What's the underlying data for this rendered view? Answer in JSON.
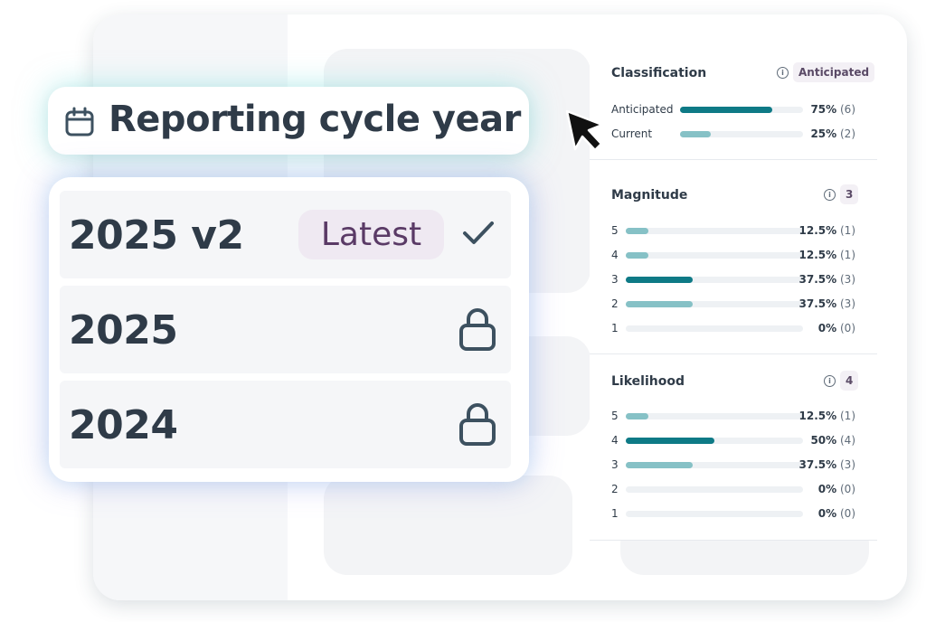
{
  "title_pill": {
    "icon": "calendar-icon",
    "title": "Reporting cycle year"
  },
  "year_options": [
    {
      "label": "2025 v2",
      "badge": "Latest",
      "icon": "check-icon",
      "selected": true
    },
    {
      "label": "2025",
      "icon": "lock-icon",
      "selected": false
    },
    {
      "label": "2024",
      "icon": "lock-icon",
      "selected": false
    }
  ],
  "stats": {
    "classification": {
      "title": "Classification",
      "badge": "Anticipated",
      "rows": [
        {
          "label": "Anticipated",
          "fraction": 0.75,
          "percent": "75%",
          "count": "(6)",
          "color": "#0e7a86"
        },
        {
          "label": "Current",
          "fraction": 0.25,
          "percent": "25%",
          "count": "(2)",
          "color": "#86c1c6"
        }
      ]
    },
    "magnitude": {
      "title": "Magnitude",
      "badge": "3",
      "rows": [
        {
          "label": "5",
          "fraction": 0.125,
          "percent": "12.5%",
          "count": "(1)",
          "color": "#86c1c6"
        },
        {
          "label": "4",
          "fraction": 0.125,
          "percent": "12.5%",
          "count": "(1)",
          "color": "#86c1c6"
        },
        {
          "label": "3",
          "fraction": 0.375,
          "percent": "37.5%",
          "count": "(3)",
          "color": "#0e7a86"
        },
        {
          "label": "2",
          "fraction": 0.375,
          "percent": "37.5%",
          "count": "(3)",
          "color": "#86c1c6"
        },
        {
          "label": "1",
          "fraction": 0,
          "percent": "0%",
          "count": "(0)",
          "color": "#86c1c6"
        }
      ]
    },
    "likelihood": {
      "title": "Likelihood",
      "badge": "4",
      "rows": [
        {
          "label": "5",
          "fraction": 0.125,
          "percent": "12.5%",
          "count": "(1)",
          "color": "#86c1c6"
        },
        {
          "label": "4",
          "fraction": 0.5,
          "percent": "50%",
          "count": "(4)",
          "color": "#0e7a86"
        },
        {
          "label": "3",
          "fraction": 0.375,
          "percent": "37.5%",
          "count": "(3)",
          "color": "#86c1c6"
        },
        {
          "label": "2",
          "fraction": 0,
          "percent": "0%",
          "count": "(0)",
          "color": "#86c1c6"
        },
        {
          "label": "1",
          "fraction": 0,
          "percent": "0%",
          "count": "(0)",
          "color": "#86c1c6"
        }
      ]
    }
  }
}
